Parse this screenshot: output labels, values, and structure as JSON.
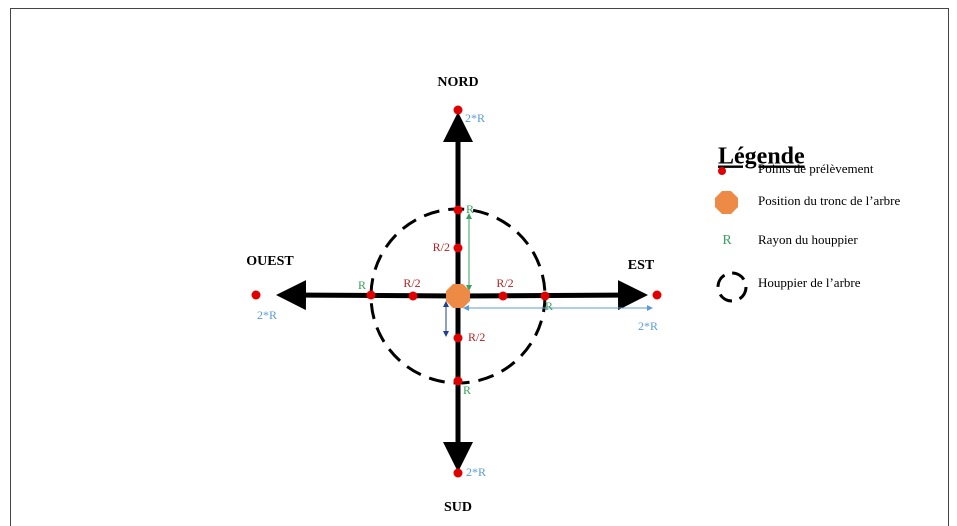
{
  "directions": {
    "north": "NORD",
    "south": "SUD",
    "west": "OUEST",
    "east": "EST"
  },
  "labels": {
    "north": {
      "far": "2*R",
      "radius": "R",
      "half": "R/2"
    },
    "south": {
      "far": "2*R",
      "radius": "R",
      "half": "R/2"
    },
    "west": {
      "far": "2*R",
      "radius": "R",
      "half": "R/2"
    },
    "east": {
      "far": "2*R",
      "radius": "R",
      "half": "R/2"
    }
  },
  "legend": {
    "title": "Légende",
    "items": [
      {
        "label": "Points de prélèvement"
      },
      {
        "label": "Position du tronc de l’arbre"
      },
      {
        "symbol": "R",
        "label": "Rayon du houppier"
      },
      {
        "label": "Houppier de l’arbre"
      }
    ]
  }
}
